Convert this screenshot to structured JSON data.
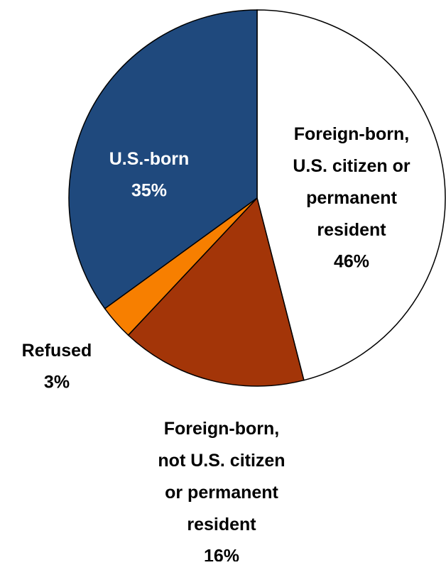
{
  "chart_data": {
    "type": "pie",
    "categories": [
      "Foreign-born,\nU.S. citizen or\npermanent\nresident",
      "Foreign-born,\nnot U.S. citizen\nor permanent\nresident",
      "Refused",
      "U.S.-born"
    ],
    "values": [
      46,
      16,
      3,
      35
    ],
    "value_labels": [
      "46%",
      "16%",
      "3%",
      "35%"
    ],
    "colors": [
      "#ffffff",
      "#a33508",
      "#f77f00",
      "#1f497d"
    ]
  }
}
